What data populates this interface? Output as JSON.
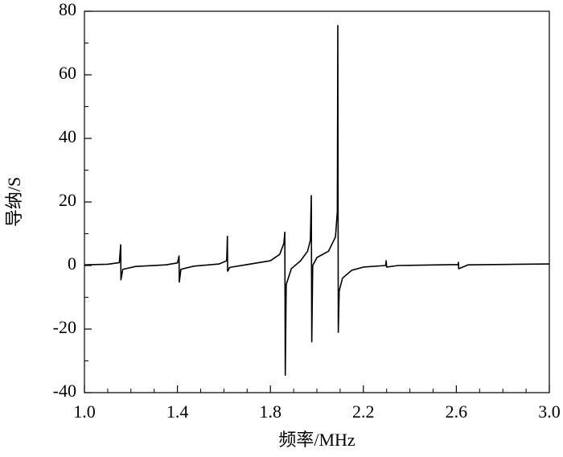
{
  "chart_data": {
    "type": "line",
    "x_label": "频率/MHz",
    "y_label": "导纳/S",
    "x": [
      1.0,
      1.1,
      1.15,
      1.156,
      1.157,
      1.165,
      1.22,
      1.35,
      1.4,
      1.407,
      1.408,
      1.415,
      1.47,
      1.58,
      1.612,
      1.615,
      1.616,
      1.625,
      1.7,
      1.8,
      1.84,
      1.858,
      1.862,
      1.864,
      1.868,
      1.89,
      1.93,
      1.96,
      1.972,
      1.976,
      1.978,
      1.982,
      2.0,
      2.05,
      2.08,
      2.088,
      2.09,
      2.092,
      2.096,
      2.11,
      2.15,
      2.2,
      2.296,
      2.298,
      2.3,
      2.35,
      2.607,
      2.609,
      2.61,
      2.65,
      3.0
    ],
    "series": [
      {
        "color": "#000000",
        "values": [
          0.2,
          0.4,
          0.9,
          6.5,
          -4.5,
          -1.2,
          -0.3,
          0.2,
          0.8,
          3.0,
          -5.2,
          -1.2,
          -0.2,
          0.5,
          1.5,
          9.2,
          -1.8,
          -0.6,
          0.3,
          1.5,
          3.5,
          7,
          10.5,
          -34.5,
          -6,
          -1,
          1.5,
          4.5,
          8,
          22,
          -24,
          0,
          2.5,
          4.5,
          9,
          17,
          75.5,
          -21,
          -8,
          -4,
          -1.5,
          -0.5,
          0,
          1.5,
          -0.5,
          0,
          0.3,
          1,
          -1,
          0.2,
          0.5
        ]
      }
    ],
    "xlim": [
      1.0,
      3.0
    ],
    "ylim": [
      -40,
      80
    ],
    "xticks": [
      {
        "value": 1.0,
        "label": "1.0"
      },
      {
        "value": 1.4,
        "label": "1.4"
      },
      {
        "value": 1.8,
        "label": "1.8"
      },
      {
        "value": 2.2,
        "label": "2.2"
      },
      {
        "value": 2.6,
        "label": "2.6"
      },
      {
        "value": 3.0,
        "label": "3.0"
      }
    ],
    "xminorticks": [
      1.1,
      1.2,
      1.3,
      1.5,
      1.6,
      1.7,
      1.9,
      2.0,
      2.1,
      2.3,
      2.4,
      2.5,
      2.7,
      2.8,
      2.9
    ],
    "yticks": [
      -40,
      -20,
      0,
      20,
      40,
      60,
      80
    ],
    "yminorticks": [
      -30,
      -10,
      10,
      30,
      50,
      70
    ]
  }
}
